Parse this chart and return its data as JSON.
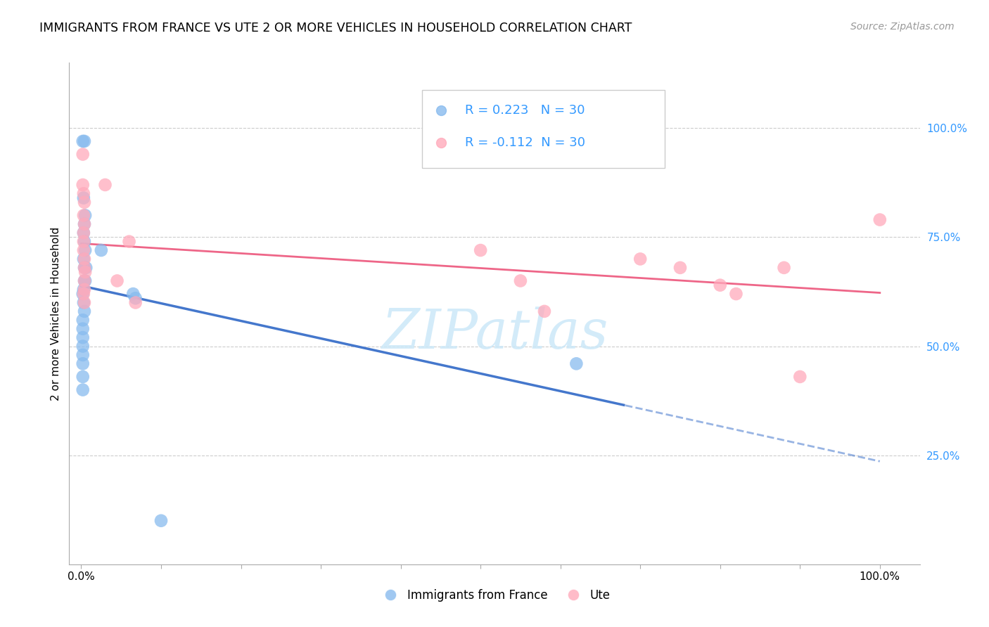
{
  "title": "IMMIGRANTS FROM FRANCE VS UTE 2 OR MORE VEHICLES IN HOUSEHOLD CORRELATION CHART",
  "source": "Source: ZipAtlas.com",
  "xlabel": "Immigrants from France",
  "ylabel": "2 or more Vehicles in Household",
  "legend_label1": "Immigrants from France",
  "legend_label2": "Ute",
  "r1": 0.223,
  "n1": 30,
  "r2": -0.112,
  "n2": 30,
  "blue_color": "#88BBEE",
  "pink_color": "#FFAABB",
  "line_blue": "#4477CC",
  "line_pink": "#EE6688",
  "right_axis_color": "#3399FF",
  "blue_scatter": [
    [
      0.002,
      0.97
    ],
    [
      0.004,
      0.97
    ],
    [
      0.003,
      0.84
    ],
    [
      0.005,
      0.8
    ],
    [
      0.004,
      0.78
    ],
    [
      0.003,
      0.76
    ],
    [
      0.004,
      0.74
    ],
    [
      0.005,
      0.72
    ],
    [
      0.003,
      0.7
    ],
    [
      0.004,
      0.68
    ],
    [
      0.006,
      0.68
    ],
    [
      0.004,
      0.65
    ],
    [
      0.005,
      0.65
    ],
    [
      0.003,
      0.63
    ],
    [
      0.002,
      0.62
    ],
    [
      0.003,
      0.6
    ],
    [
      0.004,
      0.58
    ],
    [
      0.002,
      0.56
    ],
    [
      0.002,
      0.54
    ],
    [
      0.002,
      0.52
    ],
    [
      0.002,
      0.5
    ],
    [
      0.002,
      0.48
    ],
    [
      0.002,
      0.46
    ],
    [
      0.002,
      0.43
    ],
    [
      0.002,
      0.4
    ],
    [
      0.025,
      0.72
    ],
    [
      0.065,
      0.62
    ],
    [
      0.068,
      0.61
    ],
    [
      0.62,
      0.46
    ],
    [
      0.1,
      0.1
    ]
  ],
  "pink_scatter": [
    [
      0.002,
      0.94
    ],
    [
      0.002,
      0.87
    ],
    [
      0.003,
      0.85
    ],
    [
      0.004,
      0.83
    ],
    [
      0.003,
      0.8
    ],
    [
      0.004,
      0.78
    ],
    [
      0.003,
      0.76
    ],
    [
      0.003,
      0.74
    ],
    [
      0.003,
      0.72
    ],
    [
      0.004,
      0.7
    ],
    [
      0.004,
      0.68
    ],
    [
      0.005,
      0.67
    ],
    [
      0.004,
      0.65
    ],
    [
      0.004,
      0.63
    ],
    [
      0.003,
      0.62
    ],
    [
      0.004,
      0.6
    ],
    [
      0.03,
      0.87
    ],
    [
      0.06,
      0.74
    ],
    [
      0.045,
      0.65
    ],
    [
      0.068,
      0.6
    ],
    [
      0.5,
      0.72
    ],
    [
      0.55,
      0.65
    ],
    [
      0.58,
      0.58
    ],
    [
      0.7,
      0.7
    ],
    [
      0.75,
      0.68
    ],
    [
      0.8,
      0.64
    ],
    [
      0.82,
      0.62
    ],
    [
      0.88,
      0.68
    ],
    [
      0.9,
      0.43
    ],
    [
      1.0,
      0.79
    ]
  ],
  "xlim": [
    0.0,
    1.0
  ],
  "ylim": [
    0.0,
    1.1
  ],
  "watermark": "ZIPatlas"
}
